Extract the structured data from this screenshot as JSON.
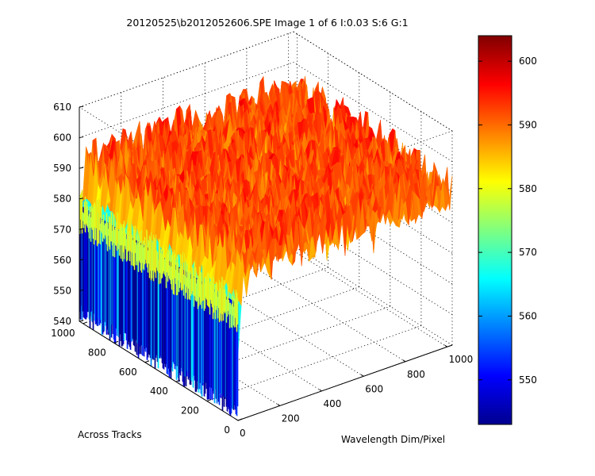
{
  "figure": {
    "title": "20120525\\b2012052606.SPE  Image 1 of 6  I:0.03  S:6  G:1"
  },
  "chart_data": {
    "type": "surface",
    "title": "20120525\\b2012052606.SPE  Image 1 of 6  I:0.03  S:6  G:1",
    "xlabel": "Wavelength Dim/Pixel",
    "ylabel": "Across Tracks",
    "zlabel": "",
    "x_ticks": [
      "0",
      "200",
      "400",
      "600",
      "800",
      "1000"
    ],
    "y_ticks": [
      "0",
      "200",
      "400",
      "600",
      "800",
      "1000"
    ],
    "z_ticks": [
      "540",
      "550",
      "560",
      "570",
      "580",
      "590",
      "600",
      "610"
    ],
    "xlim": [
      0,
      1024
    ],
    "ylim": [
      0,
      1024
    ],
    "zlim": [
      540,
      610
    ],
    "surface": {
      "plateau_level": 589,
      "plateau_noise_range": [
        583,
        599
      ],
      "edge_row_level_at_x0": 555,
      "edge_row_noise_range": [
        542,
        572
      ],
      "description_of_shape": "flat noisy plateau at about 589 counts; values drop sharply to about 555 along the x=0 edge"
    },
    "colorbar": {
      "colormap": "jet",
      "min": 543,
      "max": 604,
      "ticks": [
        "550",
        "560",
        "570",
        "580",
        "590",
        "600"
      ]
    },
    "grid": true,
    "view": "3D oblique (MATLAB default)"
  }
}
